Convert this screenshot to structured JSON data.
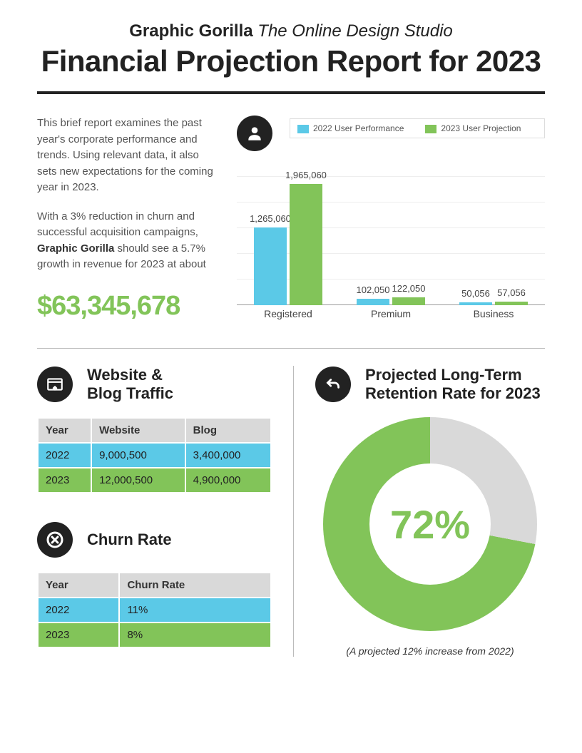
{
  "header": {
    "brand": "Graphic Gorilla",
    "tagline": "The Online Design Studio",
    "title": "Financial Projection Report for 2023"
  },
  "intro": {
    "p1": "This brief report examines the past year's corporate performance and trends. Using relevant data, it also sets new expectations for the coming year in 2023.",
    "p2a": "With a 3% reduction in churn and successful acquisition campaigns, ",
    "brand": "Graphic Gorilla",
    "p2b": " should see a 5.7% growth in revenue for 2023 at about",
    "big_number": "$63,345,678"
  },
  "user_chart": {
    "type": "bar",
    "legend": {
      "a": "2022 User Performance",
      "b": "2023 User Projection"
    },
    "colors": {
      "a": "#5bc9e7",
      "b": "#82c459",
      "grid": "#eeeeee",
      "axis": "#999999"
    },
    "y_max": 2200000,
    "groups": [
      {
        "category": "Registered",
        "a": 1265060,
        "a_label": "1,265,060",
        "b": 1965060,
        "b_label": "1,965,060"
      },
      {
        "category": "Premium",
        "a": 102050,
        "a_label": "102,050",
        "b": 122050,
        "b_label": "122,050"
      },
      {
        "category": "Business",
        "a": 50056,
        "a_label": "50,056",
        "b": 57056,
        "b_label": "57,056"
      }
    ]
  },
  "traffic": {
    "title": "Website & Blog Traffic",
    "columns": [
      "Year",
      "Website",
      "Blog"
    ],
    "rows": [
      {
        "color": "blue",
        "cells": [
          "2022",
          "9,000,500",
          "3,400,000"
        ]
      },
      {
        "color": "green",
        "cells": [
          "2023",
          "12,000,500",
          "4,900,000"
        ]
      }
    ]
  },
  "churn": {
    "title": "Churn Rate",
    "columns": [
      "Year",
      "Churn Rate"
    ],
    "rows": [
      {
        "color": "blue",
        "cells": [
          "2022",
          "11%"
        ]
      },
      {
        "color": "green",
        "cells": [
          "2023",
          "8%"
        ]
      }
    ]
  },
  "retention": {
    "title": "Projected Long-Term Retention Rate for 2023",
    "value": 72,
    "value_label": "72%",
    "colors": {
      "filled": "#82c459",
      "empty": "#d9d9d9"
    },
    "footnote": "(A projected 12% increase from 2022)"
  }
}
